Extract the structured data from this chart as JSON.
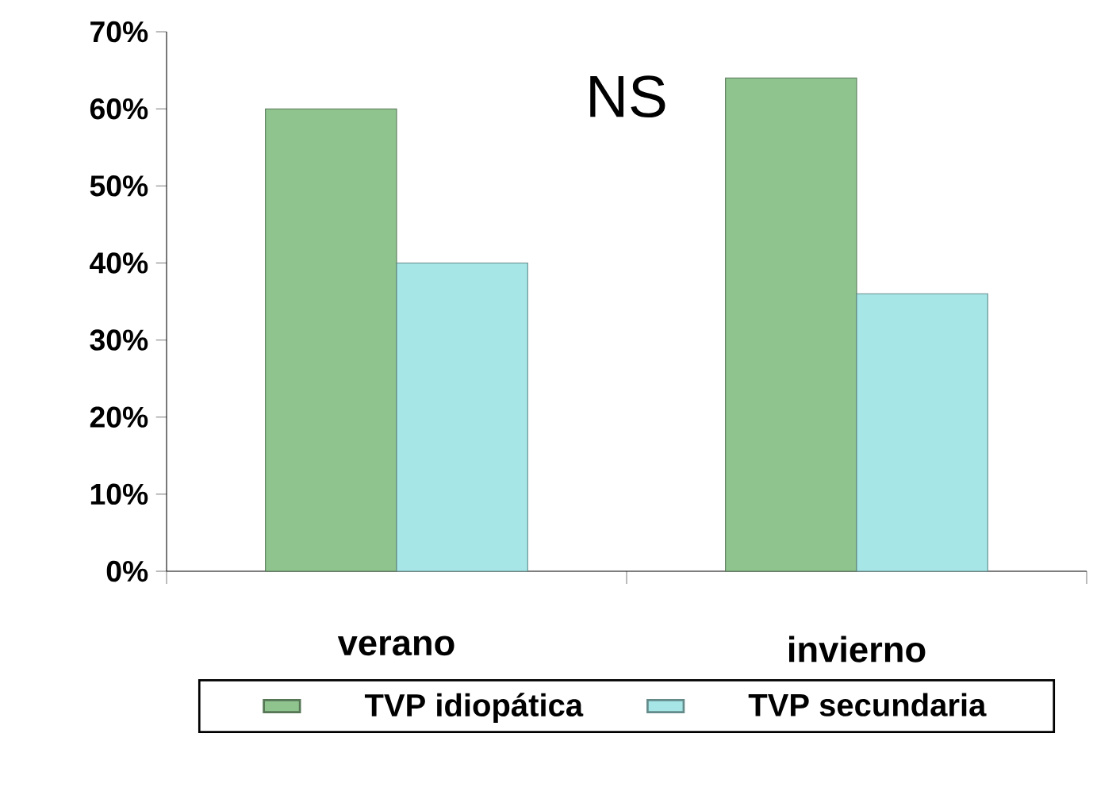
{
  "chart_data": {
    "type": "bar",
    "categories": [
      "verano",
      "invierno"
    ],
    "series": [
      {
        "name": "TVP idiopática",
        "color": "#8fc48f",
        "values": [
          60,
          64
        ]
      },
      {
        "name": "TVP secundaria",
        "color": "#a6e6e6",
        "values": [
          40,
          36
        ]
      }
    ],
    "ylim": [
      0,
      70
    ],
    "yticks": [
      {
        "value": 0,
        "label": "0%"
      },
      {
        "value": 10,
        "label": "10%"
      },
      {
        "value": 20,
        "label": "20%"
      },
      {
        "value": 30,
        "label": "30%"
      },
      {
        "value": 40,
        "label": "40%"
      },
      {
        "value": 50,
        "label": "50%"
      },
      {
        "value": 60,
        "label": "60%"
      },
      {
        "value": 70,
        "label": "70%"
      }
    ],
    "annotations": [
      "NS"
    ],
    "legend": "bottom",
    "grid": false
  }
}
